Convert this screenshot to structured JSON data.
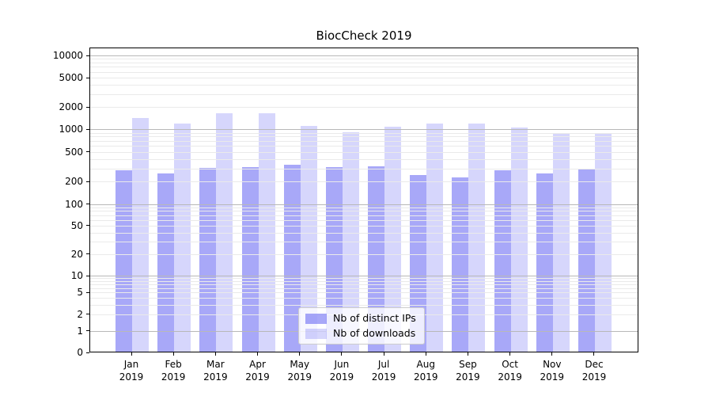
{
  "title": "BiocCheck 2019",
  "legend": {
    "items": [
      {
        "label": "Nb of distinct IPs",
        "series_key": "ips"
      },
      {
        "label": "Nb of downloads",
        "series_key": "downloads"
      }
    ]
  },
  "colors": {
    "bar_ips": "rgba(0,0,235,0.34)",
    "bar_ips_hex": "#a9a9f2",
    "bar_downloads": "rgba(0,0,235,0.16)",
    "bar_downloads_hex": "#d9d9fa",
    "grid_major": "#b8b8b8",
    "grid_minor": "#eaeaea",
    "axis": "#000000",
    "legend_border": "#cccccc"
  },
  "axes": {
    "y_tick_labels": [
      "10000",
      "5000",
      "2000",
      "1000",
      "500",
      "200",
      "100",
      "50",
      "20",
      "10",
      "5",
      "2",
      "1",
      "0"
    ],
    "x_tick_year": "2019"
  },
  "chart_data": {
    "type": "bar",
    "title": "BiocCheck 2019",
    "categories": [
      "Jan",
      "Feb",
      "Mar",
      "Apr",
      "May",
      "Jun",
      "Jul",
      "Aug",
      "Sep",
      "Oct",
      "Nov",
      "Dec"
    ],
    "category_year": "2019",
    "series": [
      {
        "name": "Nb of distinct IPs",
        "values": [
          285,
          258,
          305,
          315,
          335,
          315,
          322,
          245,
          225,
          280,
          255,
          295
        ]
      },
      {
        "name": "Nb of downloads",
        "values": [
          1430,
          1190,
          1660,
          1650,
          1110,
          905,
          1080,
          1200,
          1185,
          1055,
          900,
          880
        ]
      }
    ],
    "yscale": "symlog",
    "ylim": [
      0,
      12800
    ],
    "yticks": [
      0,
      1,
      2,
      5,
      10,
      20,
      50,
      100,
      200,
      500,
      1000,
      2000,
      5000,
      10000
    ],
    "grid": true,
    "grid_over_bars": true,
    "legend_position": "lower center",
    "xlabel": "",
    "ylabel": ""
  }
}
